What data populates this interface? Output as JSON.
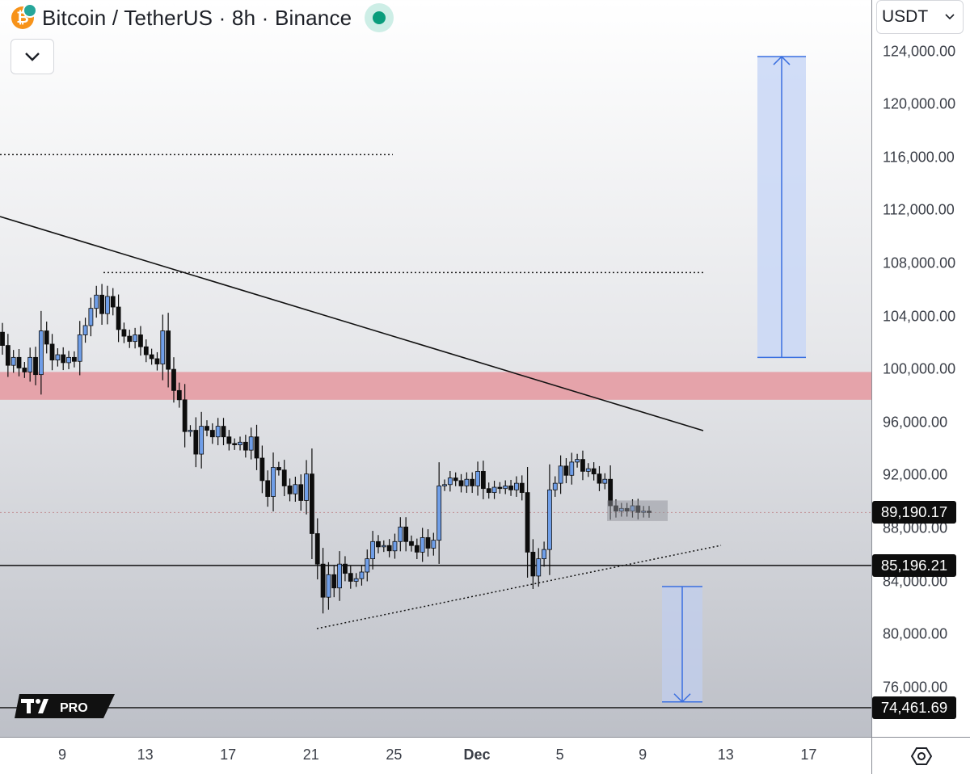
{
  "header": {
    "symbol_title": "Bitcoin / TetherUS · 8h · Binance"
  },
  "currency_select": {
    "label": "USDT",
    "icon": "chevron-down-icon"
  },
  "branding": {
    "badge": "PRO",
    "logo": "tradingview-logo"
  },
  "price_axis": {
    "ticks": [
      "124,000.00",
      "120,000.00",
      "116,000.00",
      "112,000.00",
      "108,000.00",
      "104,000.00",
      "100,000.00",
      "96,000.00",
      "92,000.00",
      "88,000.00",
      "84,000.00",
      "80,000.00",
      "76,000.00"
    ],
    "labels": {
      "last_price": "89,190.17",
      "support_level": "85,196.21",
      "target_level": "74,461.69"
    }
  },
  "time_axis": {
    "ticks": [
      "9",
      "13",
      "17",
      "21",
      "25",
      "Dec",
      "5",
      "9",
      "13",
      "17"
    ]
  },
  "colors": {
    "candle_up": "#6f9ee8",
    "candle_down": "#0d0d0d",
    "resistance_zone": "#e5a3aa",
    "projection_fill": "#c9d7f6",
    "projection_line": "#3a6fe0"
  },
  "chart_data": {
    "type": "candlestick",
    "symbol": "BTC/USDT",
    "interval": "8h",
    "ylim": [
      73000,
      125500
    ],
    "last_price": 89190.17,
    "horizontal_levels": [
      85196.21,
      74461.69
    ],
    "resistance_zone": [
      97700,
      99800
    ],
    "dotted_levels": [
      116200,
      107300
    ],
    "long_projection": {
      "from": 100900,
      "to": 123600
    },
    "short_projection": {
      "from": 83600,
      "to": 74900
    },
    "candles": [
      {
        "o": 102800,
        "c": 101800
      },
      {
        "o": 101800,
        "c": 100300
      },
      {
        "o": 100300,
        "c": 100900
      },
      {
        "o": 100900,
        "c": 100100
      },
      {
        "o": 100100,
        "c": 99800
      },
      {
        "o": 99800,
        "c": 100900
      },
      {
        "o": 100900,
        "c": 99600
      },
      {
        "o": 99600,
        "c": 102900
      },
      {
        "o": 102900,
        "c": 101900
      },
      {
        "o": 101900,
        "c": 100700
      },
      {
        "o": 100700,
        "c": 101100
      },
      {
        "o": 101100,
        "c": 100500
      },
      {
        "o": 100500,
        "c": 100900
      },
      {
        "o": 100900,
        "c": 100600
      },
      {
        "o": 100600,
        "c": 102600
      },
      {
        "o": 102600,
        "c": 103300
      },
      {
        "o": 103300,
        "c": 104600
      },
      {
        "o": 104600,
        "c": 105600
      },
      {
        "o": 105600,
        "c": 104200
      },
      {
        "o": 104200,
        "c": 105500
      },
      {
        "o": 105500,
        "c": 104700
      },
      {
        "o": 104700,
        "c": 103000
      },
      {
        "o": 103000,
        "c": 102500
      },
      {
        "o": 102500,
        "c": 102100
      },
      {
        "o": 102100,
        "c": 102600
      },
      {
        "o": 102600,
        "c": 101700
      },
      {
        "o": 101700,
        "c": 101100
      },
      {
        "o": 101100,
        "c": 100800
      },
      {
        "o": 100800,
        "c": 100400
      },
      {
        "o": 100400,
        "c": 102900
      },
      {
        "o": 102900,
        "c": 100000
      },
      {
        "o": 100000,
        "c": 98400
      },
      {
        "o": 98400,
        "c": 97700
      },
      {
        "o": 97700,
        "c": 95300
      },
      {
        "o": 95300,
        "c": 95400
      },
      {
        "o": 95400,
        "c": 93600
      },
      {
        "o": 93600,
        "c": 95700
      },
      {
        "o": 95700,
        "c": 95400
      },
      {
        "o": 95400,
        "c": 94900
      },
      {
        "o": 94900,
        "c": 95700
      },
      {
        "o": 95700,
        "c": 94900
      },
      {
        "o": 94900,
        "c": 94400
      },
      {
        "o": 94400,
        "c": 94300
      },
      {
        "o": 94300,
        "c": 94500
      },
      {
        "o": 94500,
        "c": 93900
      },
      {
        "o": 93900,
        "c": 94900
      },
      {
        "o": 94900,
        "c": 93300
      },
      {
        "o": 93300,
        "c": 91600
      },
      {
        "o": 91600,
        "c": 90400
      },
      {
        "o": 90400,
        "c": 92600
      },
      {
        "o": 92600,
        "c": 92400
      },
      {
        "o": 92400,
        "c": 91200
      },
      {
        "o": 91200,
        "c": 90600
      },
      {
        "o": 90600,
        "c": 91300
      },
      {
        "o": 91300,
        "c": 90100
      },
      {
        "o": 90100,
        "c": 92100
      },
      {
        "o": 92100,
        "c": 87600
      },
      {
        "o": 87600,
        "c": 85300
      },
      {
        "o": 85300,
        "c": 82800
      },
      {
        "o": 82800,
        "c": 84500
      },
      {
        "o": 84500,
        "c": 83500
      },
      {
        "o": 83500,
        "c": 85300
      },
      {
        "o": 85300,
        "c": 84600
      },
      {
        "o": 84600,
        "c": 84000
      },
      {
        "o": 84000,
        "c": 84200
      },
      {
        "o": 84200,
        "c": 84700
      },
      {
        "o": 84700,
        "c": 85700
      },
      {
        "o": 85700,
        "c": 87000
      },
      {
        "o": 87000,
        "c": 86600
      },
      {
        "o": 86600,
        "c": 86700
      },
      {
        "o": 86700,
        "c": 86300
      },
      {
        "o": 86300,
        "c": 87000
      },
      {
        "o": 87000,
        "c": 88100
      },
      {
        "o": 88100,
        "c": 87000
      },
      {
        "o": 87000,
        "c": 86700
      },
      {
        "o": 86700,
        "c": 86200
      },
      {
        "o": 86200,
        "c": 87300
      },
      {
        "o": 87300,
        "c": 86500
      },
      {
        "o": 86500,
        "c": 87100
      },
      {
        "o": 87100,
        "c": 91200
      },
      {
        "o": 91200,
        "c": 91300
      },
      {
        "o": 91300,
        "c": 91800
      },
      {
        "o": 91800,
        "c": 91600
      },
      {
        "o": 91600,
        "c": 91200
      },
      {
        "o": 91200,
        "c": 91700
      },
      {
        "o": 91700,
        "c": 91200
      },
      {
        "o": 91200,
        "c": 92300
      },
      {
        "o": 92300,
        "c": 91000
      },
      {
        "o": 91000,
        "c": 90700
      },
      {
        "o": 90700,
        "c": 91100
      },
      {
        "o": 91100,
        "c": 91000
      },
      {
        "o": 91000,
        "c": 91200
      },
      {
        "o": 91200,
        "c": 90900
      },
      {
        "o": 90900,
        "c": 91400
      },
      {
        "o": 91400,
        "c": 90700
      },
      {
        "o": 90700,
        "c": 86200
      },
      {
        "o": 86200,
        "c": 84400
      },
      {
        "o": 84400,
        "c": 85700
      },
      {
        "o": 85700,
        "c": 86400
      },
      {
        "o": 86400,
        "c": 90900
      },
      {
        "o": 90900,
        "c": 91400
      },
      {
        "o": 91400,
        "c": 92700
      },
      {
        "o": 92700,
        "c": 92000
      },
      {
        "o": 92000,
        "c": 93000
      },
      {
        "o": 93000,
        "c": 93200
      },
      {
        "o": 93200,
        "c": 92300
      },
      {
        "o": 92300,
        "c": 92500
      },
      {
        "o": 92500,
        "c": 92100
      },
      {
        "o": 92100,
        "c": 91400
      },
      {
        "o": 91400,
        "c": 91700
      },
      {
        "o": 91700,
        "c": 89700
      },
      {
        "o": 89700,
        "c": 89300
      },
      {
        "o": 89300,
        "c": 89500
      },
      {
        "o": 89500,
        "c": 89300
      },
      {
        "o": 89300,
        "c": 89700
      },
      {
        "o": 89700,
        "c": 89200
      },
      {
        "o": 89200,
        "c": 89300
      },
      {
        "o": 89300,
        "c": 89190
      }
    ]
  }
}
